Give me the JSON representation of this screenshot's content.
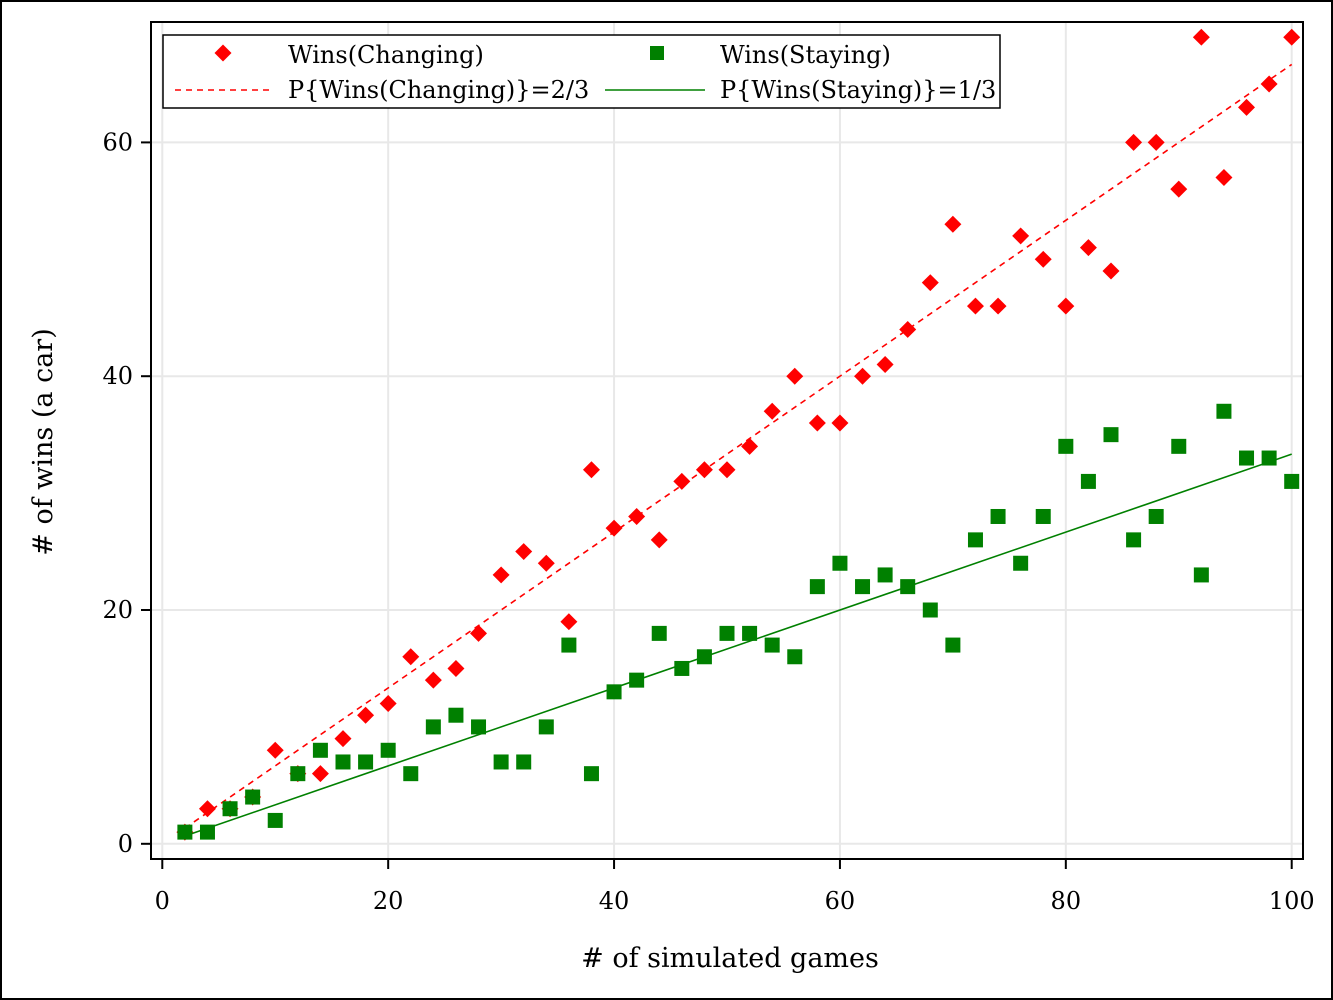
{
  "chart_data": {
    "type": "scatter",
    "title": "",
    "xlabel": "# of simulated games",
    "ylabel": "# of wins (a car)",
    "xlim": [
      -1,
      101
    ],
    "ylim": [
      -1.3,
      70.3
    ],
    "xticks": [
      0,
      20,
      40,
      60,
      80,
      100
    ],
    "yticks": [
      0,
      20,
      40,
      60
    ],
    "grid": true,
    "legend_position": "top-left",
    "x": [
      2,
      4,
      6,
      8,
      10,
      12,
      14,
      16,
      18,
      20,
      22,
      24,
      26,
      28,
      30,
      32,
      34,
      36,
      38,
      40,
      42,
      44,
      46,
      48,
      50,
      52,
      54,
      56,
      58,
      60,
      62,
      64,
      66,
      68,
      70,
      72,
      74,
      76,
      78,
      80,
      82,
      84,
      86,
      88,
      90,
      92,
      94,
      96,
      98,
      100
    ],
    "series": [
      {
        "name": "Wins(Changing)",
        "kind": "scatter",
        "marker": "diamond",
        "color": "#ff0000",
        "values": [
          1,
          3,
          3,
          4,
          8,
          6,
          6,
          9,
          11,
          12,
          16,
          14,
          15,
          18,
          23,
          25,
          24,
          19,
          32,
          27,
          28,
          26,
          31,
          32,
          32,
          34,
          37,
          40,
          36,
          36,
          40,
          41,
          44,
          48,
          53,
          46,
          46,
          52,
          50,
          46,
          51,
          49,
          60,
          60,
          56,
          69,
          57,
          63,
          65,
          69
        ]
      },
      {
        "name": "Wins(Staying)",
        "kind": "scatter",
        "marker": "square",
        "color": "#008000",
        "values": [
          1,
          1,
          3,
          4,
          2,
          6,
          8,
          7,
          7,
          8,
          6,
          10,
          11,
          10,
          7,
          7,
          10,
          17,
          6,
          13,
          14,
          18,
          15,
          16,
          18,
          18,
          17,
          16,
          22,
          24,
          22,
          23,
          22,
          20,
          17,
          26,
          28,
          24,
          28,
          34,
          31,
          35,
          26,
          28,
          34,
          23,
          37,
          33,
          33,
          31
        ]
      },
      {
        "name": "P{Wins(Changing)}=2/3",
        "kind": "line",
        "style": "dashed",
        "color": "#ff0000",
        "slope": 0.6667
      },
      {
        "name": "P{Wins(Staying)}=1/3",
        "kind": "line",
        "style": "solid",
        "color": "#008000",
        "slope": 0.3333
      }
    ]
  }
}
